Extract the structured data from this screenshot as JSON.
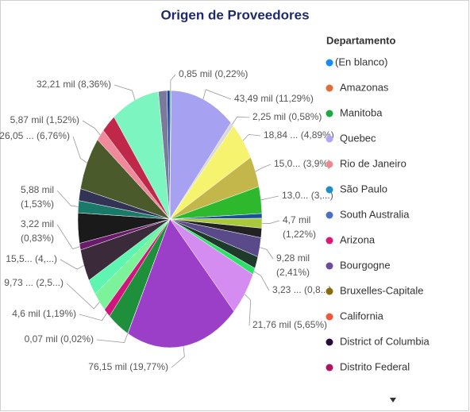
{
  "chart_data": {
    "type": "pie",
    "title": "Origen de Proveedores",
    "values": [
      0.85,
      43.49,
      2.25,
      18.84,
      15.0,
      13.0,
      2.3,
      4.7,
      4.6,
      9.28,
      5.8,
      3.23,
      21.76,
      76.15,
      0.07,
      14.6,
      4.6,
      9.73,
      7.7,
      15.5,
      3.22,
      14.6,
      5.88,
      5.8,
      26.05,
      5.87,
      9.6,
      32.21,
      5.8,
      1.9
    ],
    "value_labels": [
      "0,85 mil (0,22%)",
      "43,49 mil (11,29%)",
      "2,25 mil (0,58%)",
      "18,84 ... (4,89%)",
      "15,0... (3,9%)",
      "13,0... (3,...)",
      null,
      "4,7 mil (1,22%)",
      null,
      "9,28 mil (2,41%)",
      null,
      "3,23 ... (0,8...)",
      "21,76 mil (5,65%)",
      "76,15 mil (19,77%)",
      "0,07 mil (0,02%)",
      null,
      "4,6 mil (1,19%)",
      "9,73 ... (2,5...)",
      null,
      "15,5... (4,...)",
      "3,22 mil (0,83%)",
      null,
      "5,88 mil (1,53%)",
      null,
      "26,05 ... (6,76%)",
      "5,87 mil (1,52%)",
      null,
      "32,21 mil (8,36%)",
      null,
      null
    ],
    "colors": [
      "#1aab40",
      "#a7a1f2",
      "#d9d9d9",
      "#f6f46e",
      "#c3b64a",
      "#2db82d",
      "#1a4fa0",
      "#a9c83c",
      "#222222",
      "#5a4a8a",
      "#1d3a2a",
      "#2ee06a",
      "#d58cf0",
      "#9b3fc9",
      "#333333",
      "#1e8f3a",
      "#d0157c",
      "#7cf29a",
      "#5ef5b0",
      "#3a2a3a",
      "#6a1a6a",
      "#1a1a1a",
      "#1a7a6a",
      "#333355",
      "#4a5a2a",
      "#f08a9a",
      "#c0284a",
      "#7df5c0",
      "#7a7a9a",
      "#1a3aa0"
    ],
    "legend": {
      "title": "Departamento",
      "items": [
        {
          "name": "(En blanco)",
          "color": "#118dff"
        },
        {
          "name": "Amazonas",
          "color": "#e66c37"
        },
        {
          "name": "Manitoba",
          "color": "#1aab40"
        },
        {
          "name": "Quebec",
          "color": "#b3a5f5"
        },
        {
          "name": "Rio de Janeiro",
          "color": "#f08a8a"
        },
        {
          "name": "São Paulo",
          "color": "#1a8fc9"
        },
        {
          "name": "South Australia",
          "color": "#4b6fc6"
        },
        {
          "name": "Arizona",
          "color": "#e0157c"
        },
        {
          "name": "Bourgogne",
          "color": "#6b4c9a"
        },
        {
          "name": "Bruxelles-Capitale",
          "color": "#8a6d0b"
        },
        {
          "name": "California",
          "color": "#f2553a"
        },
        {
          "name": "District of Columbia",
          "color": "#2a0a3e"
        },
        {
          "name": "Distrito Federal",
          "color": "#b5125d"
        }
      ]
    }
  }
}
